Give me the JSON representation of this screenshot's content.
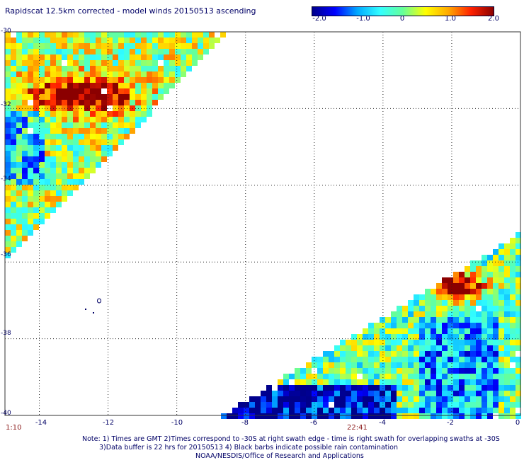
{
  "title": "Rapidscat 12.5km corrected - model winds 20150513 ascending",
  "colorbar": {
    "ticks": [
      "-2.0",
      "-1.0",
      "0",
      "1.0",
      "2.0"
    ],
    "tick_values": [
      -2,
      -1,
      0,
      1,
      2
    ],
    "range": [
      -2,
      2
    ],
    "colors": [
      "#00008b",
      "#0000ff",
      "#00aaff",
      "#33ffff",
      "#66ff99",
      "#ffff00",
      "#ffaa00",
      "#ff2200",
      "#8b0000"
    ]
  },
  "chart_data": {
    "type": "heatmap",
    "title": "Rapidscat 12.5km corrected - model winds 20150513 ascending",
    "x_ticks": [
      "-14",
      "-12",
      "-10",
      "-8",
      "-6",
      "-4",
      "-2",
      "0"
    ],
    "y_ticks": [
      "-30",
      "-32",
      "-34",
      "-36",
      "-38",
      "-40"
    ],
    "xlim": [
      -15.0,
      0.0
    ],
    "ylim": [
      -40.0,
      -30.0
    ],
    "value_range": [
      -2.0,
      2.0
    ],
    "swaths": [
      {
        "region": "upper-left swath",
        "lon_range": [
          -15.0,
          -8.7
        ],
        "lat_range": [
          -36.0,
          -30.0
        ],
        "typical_value": 0.8,
        "max_value": 2.0
      },
      {
        "region": "lower-right swath",
        "lon_range": [
          -8.7,
          0.0
        ],
        "lat_range": [
          -40.0,
          -35.2
        ],
        "typical_value": -0.3,
        "max_value": 2.0
      }
    ],
    "grid": "dotted"
  },
  "time_labels": {
    "left": "1:10",
    "middle": "22:41"
  },
  "notes": [
    "Note: 1) Times are GMT 2)Times correspond to -30S at right swath edge - time is right swath for overlapping swaths at -30S",
    "3)Data buffer is 22 hrs for 20150513 4) Black barbs indicate possible rain contamination",
    "NOAA/NESDIS/Office of Research and Applications"
  ]
}
